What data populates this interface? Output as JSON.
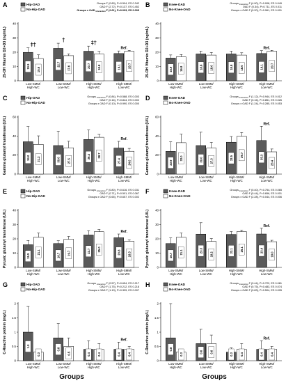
{
  "x_axis_title": "Groups",
  "categories": [
    "Low-SMM/\nHigh-WC",
    "Low-SMM/\nLow-WC",
    "High-SMM/\nHigh-WC",
    "High-SMM/\nLow-WC"
  ],
  "chart_data": [
    {
      "type": "bar",
      "panel": "A",
      "ylabel": "25-OH Vitamin D2+D3 (ng/mL)",
      "ylim": [
        0,
        40
      ],
      "yticks": [
        0,
        10,
        20,
        30,
        40
      ],
      "series": [
        {
          "name": "Hip-OAD",
          "color": "#5a5a5a",
          "values": [
            19.9,
            22.7,
            20.7,
            19.1
          ],
          "errors": [
            3.2,
            3.6,
            3.6,
            1.8
          ]
        },
        {
          "name": "No-Hip-OAD",
          "color": "#ffffff",
          "values": [
            15.6,
            17.6,
            18.8,
            20.7
          ],
          "errors": [
            2.6,
            1.2,
            1.8,
            0.6
          ]
        }
      ],
      "stats": [
        {
          "label": "Groups",
          "sub": "",
          "text": "F (0.89), P=0.504, ES 0.342",
          "bold": false
        },
        {
          "label": "OAD",
          "sub": "",
          "text": "F (2.72), P=0.137, ES 0.452",
          "bold": false
        },
        {
          "label": "Groups x OAD",
          "sub": "interaction",
          "text": "F (2.61), P=0.003, ES 0.005",
          "bold": true
        }
      ],
      "annotations": [
        "‡†",
        "†",
        "‡†"
      ],
      "ref_label": "Ref."
    },
    {
      "type": "bar",
      "panel": "B",
      "ylabel": "25-OH Vitamin D2+D3 (ng/mL)",
      "ylim": [
        0,
        40
      ],
      "yticks": [
        0,
        10,
        20,
        30,
        40
      ],
      "series": [
        {
          "name": "Knee-OAD",
          "color": "#5a5a5a",
          "values": [
            15.9,
            18.8,
            18.8,
            19.1
          ],
          "errors": [
            2.2,
            2.0,
            2.0,
            2.0
          ]
        },
        {
          "name": "No-Knee-OAD",
          "color": "#ffffff",
          "values": [
            16.8,
            18.0,
            18.0,
            20.7
          ],
          "errors": [
            1.6,
            1.8,
            1.6,
            0.6
          ]
        }
      ],
      "stats": [
        {
          "label": "Groups",
          "sub": "interaction",
          "text": "F (4.00), P=0.008, ES 0.049",
          "bold": false
        },
        {
          "label": "OAD",
          "sub": "",
          "text": "F (0.34), P=0.711, ES 0.011",
          "bold": false
        },
        {
          "label": "Groups x OAD",
          "sub": "",
          "text": "F (0.20), P=0.961, ES 0.001",
          "bold": false
        }
      ],
      "annotations": [],
      "ref_label": "Ref."
    },
    {
      "type": "bar",
      "panel": "C",
      "ylabel": "Gamma glutamyl transferase (U/L)",
      "ylim": [
        0,
        60
      ],
      "yticks": [
        0,
        20,
        40,
        60
      ],
      "series": [
        {
          "name": "Hip-OAD",
          "color": "#5a5a5a",
          "values": [
            34.0,
            30.0,
            36.4,
            27.4
          ],
          "errors": [
            16.0,
            15.0,
            10.0,
            7.0
          ]
        },
        {
          "name": "No-Hip-OAD",
          "color": "#ffffff",
          "values": [
            31.2,
            27.5,
            38.7,
            24.0
          ],
          "errors": [
            9.0,
            7.0,
            3.0,
            3.0
          ]
        }
      ],
      "stats": [
        {
          "label": "Groups",
          "sub": "interaction",
          "text": "F (0.84), P=0.588, ES 0.003",
          "bold": false
        },
        {
          "label": "OAD",
          "sub": "",
          "text": "F (0.16), P=0.844, ES 0.002",
          "bold": false
        },
        {
          "label": "Groups x OAD",
          "sub": "",
          "text": "F (0.10), P=0.990, ES 0.000",
          "bold": false
        }
      ],
      "annotations": [],
      "ref_label": "Ref."
    },
    {
      "type": "bar",
      "panel": "D",
      "ylabel": "Gamma glutamyl transferase (U/L)",
      "ylim": [
        0,
        60
      ],
      "yticks": [
        0,
        20,
        40,
        60
      ],
      "series": [
        {
          "name": "Knee-OAD",
          "color": "#5a5a5a",
          "values": [
            23.9,
            30.0,
            33.5,
            35.3
          ],
          "errors": [
            10.0,
            14.0,
            6.0,
            15.0
          ]
        },
        {
          "name": "No-Knee-OAD",
          "color": "#ffffff",
          "values": [
            33.0,
            27.3,
            39.7,
            23.4
          ],
          "errors": [
            9.0,
            6.0,
            4.0,
            3.0
          ]
        }
      ],
      "stats": [
        {
          "label": "Groups",
          "sub": "interaction",
          "text": "F (1.12), P=0.944, ES 0.012",
          "bold": false
        },
        {
          "label": "OAD",
          "sub": "",
          "text": "F (0.16), P=0.851, ES 0.026",
          "bold": false
        },
        {
          "label": "Groups x OAD",
          "sub": "",
          "text": "F (1.24), P=0.285, ES 0.053",
          "bold": false
        }
      ],
      "annotations": [],
      "ref_label": "Ref."
    },
    {
      "type": "bar",
      "panel": "E",
      "ylabel": "Pyruvic glutamyl transferase (U/L)",
      "ylim": [
        0,
        40
      ],
      "yticks": [
        0,
        10,
        20,
        30,
        40
      ],
      "series": [
        {
          "name": "Hip-OAD",
          "color": "#5a5a5a",
          "values": [
            15.9,
            16.7,
            22.7,
            20.8
          ],
          "errors": [
            3.0,
            2.0,
            3.0,
            2.6
          ]
        },
        {
          "name": "No-Hip-OAD",
          "color": "#ffffff",
          "values": [
            21.1,
            19.7,
            25.0,
            18.3
          ],
          "errors": [
            3.0,
            2.0,
            1.6,
            1.0
          ]
        }
      ],
      "stats": [
        {
          "label": "Groups",
          "sub": "interaction",
          "text": "F (0.80), P=0.616, ES 0.031",
          "bold": false
        },
        {
          "label": "OAD",
          "sub": "",
          "text": "F (0.71), P=0.501, ES 0.067",
          "bold": false
        },
        {
          "label": "Groups x OAD",
          "sub": "",
          "text": "F (0.65), P=0.657, ES 0.002",
          "bold": false
        }
      ],
      "annotations": [],
      "ref_label": "Ref."
    },
    {
      "type": "bar",
      "panel": "F",
      "ylabel": "Pyruvic glutamyl transferase (U/L)",
      "ylim": [
        0,
        40
      ],
      "yticks": [
        0,
        10,
        20,
        30,
        40
      ],
      "series": [
        {
          "name": "Knee-OAD",
          "color": "#5a5a5a",
          "values": [
            16.7,
            23.3,
            23.1,
            23.4
          ],
          "errors": [
            4.0,
            8.0,
            2.0,
            4.0
          ]
        },
        {
          "name": "No-Knee-OAD",
          "color": "#ffffff",
          "values": [
            21.1,
            18.2,
            25.1,
            18.0
          ],
          "errors": [
            3.0,
            2.0,
            1.0,
            1.0
          ]
        }
      ],
      "stats": [
        {
          "label": "Groups",
          "sub": "interaction",
          "text": "F (0.40), P=0.754, ES 0.065",
          "bold": false
        },
        {
          "label": "OAD",
          "sub": "",
          "text": "F (0.44), P=0.656, ES 0.001",
          "bold": false
        },
        {
          "label": "Groups x OAD",
          "sub": "",
          "text": "F (2.28), P=0.044, ES 0.006",
          "bold": false
        }
      ],
      "annotations": [],
      "ref_label": "Ref."
    },
    {
      "type": "bar",
      "panel": "G",
      "ylabel": "C-Reactive protein (mg/L)",
      "ylim": [
        0,
        2
      ],
      "yticks": [
        0,
        0.5,
        1,
        1.5,
        2
      ],
      "series": [
        {
          "name": "Hip-OAD",
          "color": "#5a5a5a",
          "values": [
            1.0,
            0.8,
            0.4,
            0.4
          ],
          "errors": [
            0.9,
            0.5,
            0.3,
            0.25
          ]
        },
        {
          "name": "No-Hip-OAD",
          "color": "#ffffff",
          "values": [
            0.3,
            0.5,
            0.4,
            0.4
          ],
          "errors": [
            0.1,
            0.3,
            0.2,
            0.1
          ]
        }
      ],
      "stats": [
        {
          "label": "Groups",
          "sub": "interaction",
          "text": "F (0.57), P=0.654, ES 0.217",
          "bold": false
        },
        {
          "label": "OAD",
          "sub": "",
          "text": "F (1.75), P=0.212, ES 0.218",
          "bold": false
        },
        {
          "label": "Groups x OAD",
          "sub": "",
          "text": "F (1.13), P=0.339, ES 0.007",
          "bold": false
        }
      ],
      "annotations": [],
      "ref_label": "Ref."
    },
    {
      "type": "bar",
      "panel": "H",
      "ylabel": "C-Reactive protein (mg/L)",
      "ylim": [
        0,
        2
      ],
      "yticks": [
        0,
        0.5,
        1,
        1.5,
        2
      ],
      "series": [
        {
          "name": "Knee-OAD",
          "color": "#5a5a5a",
          "values": [
            0.8,
            0.6,
            0.3,
            0.4
          ],
          "errors": [
            1.2,
            0.5,
            0.15,
            0.3
          ]
        },
        {
          "name": "No-Knee-OAD",
          "color": "#ffffff",
          "values": [
            0.3,
            0.6,
            0.4,
            0.4
          ],
          "errors": [
            0.1,
            0.3,
            0.2,
            0.1
          ]
        }
      ],
      "stats": [
        {
          "label": "Groups",
          "sub": "interaction",
          "text": "F (0.44), P=0.722, ES 0.081",
          "bold": false
        },
        {
          "label": "OAD",
          "sub": "",
          "text": "F (0.75), P=0.483, ES 0.074",
          "bold": false
        },
        {
          "label": "Groups x OAD",
          "sub": "",
          "text": "F (0.83), P=0.504, ES 0.005",
          "bold": false
        }
      ],
      "annotations": [],
      "ref_label": "Ref."
    }
  ]
}
